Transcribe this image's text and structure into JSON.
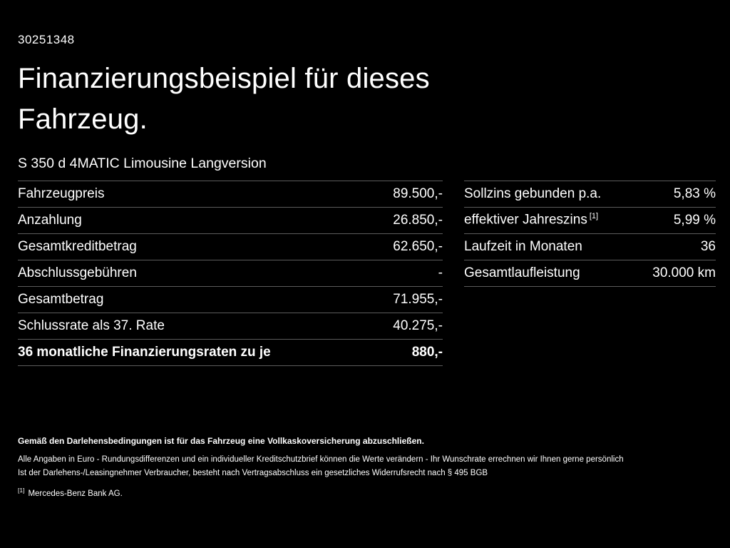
{
  "doc_id": "30251348",
  "title": "Finanzierungsbeispiel für dieses Fahrzeug.",
  "vehicle": "S 350 d 4MATIC Limousine Langversion",
  "colors": {
    "background": "#000000",
    "text": "#ffffff",
    "divider": "#5c5c5c"
  },
  "financing_table": {
    "rows": [
      {
        "label": "Fahrzeugpreis",
        "value": "89.500,-"
      },
      {
        "label": "Anzahlung",
        "value": "26.850,-"
      },
      {
        "label": "Gesamtkreditbetrag",
        "value": "62.650,-"
      },
      {
        "label": "Abschlussgebühren",
        "value": "-"
      },
      {
        "label": "Gesamtbetrag",
        "value": "71.955,-"
      },
      {
        "label": "Schlussrate als 37. Rate",
        "value": "40.275,-"
      },
      {
        "label": "36 monatliche Finanzierungsraten zu je",
        "value": "880,-"
      }
    ]
  },
  "conditions_table": {
    "rows": [
      {
        "label": "Sollzins gebunden p.a.",
        "sup": "",
        "value": "5,83 %"
      },
      {
        "label": "effektiver Jahreszins",
        "sup": "[1]",
        "value": "5,99 %"
      },
      {
        "label": "Laufzeit in Monaten",
        "sup": "",
        "value": "36"
      },
      {
        "label": "Gesamtlaufleistung",
        "sup": "",
        "value": "30.000 km"
      }
    ]
  },
  "footer": {
    "line_bold": "Gemäß den Darlehensbedingungen ist für das Fahrzeug eine Vollkaskoversicherung abzuschließen.",
    "line_2": "Alle Angaben in Euro - Rundungsdifferenzen und ein individueller Kreditschutzbrief können die Werte verändern - Ihr Wunschrate errechnen wir Ihnen gerne persönlich",
    "line_3": "Ist der Darlehens-/Leasingnehmer Verbraucher, besteht nach Vertragsabschluss ein gesetzliches Widerrufsrecht nach § 495 BGB",
    "footnote_marker": "[1]",
    "footnote_text": "Mercedes-Benz Bank AG."
  }
}
